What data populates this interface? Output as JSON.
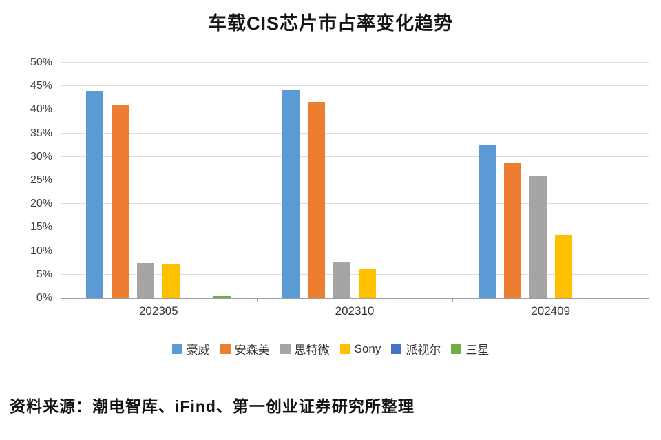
{
  "chart_data": {
    "type": "bar",
    "title": "车载CIS芯片市占率变化趋势",
    "categories": [
      "202305",
      "202310",
      "202409"
    ],
    "series": [
      {
        "name": "豪威",
        "color": "#5B9BD5",
        "values": [
          44.0,
          44.3,
          32.5
        ]
      },
      {
        "name": "安森美",
        "color": "#ED7D31",
        "values": [
          41.0,
          41.6,
          28.6
        ]
      },
      {
        "name": "思特微",
        "color": "#A5A5A5",
        "values": [
          7.5,
          7.7,
          25.9
        ]
      },
      {
        "name": "Sony",
        "color": "#FFC000",
        "values": [
          7.1,
          6.2,
          13.5
        ]
      },
      {
        "name": "派视尔",
        "color": "#4472C4",
        "values": [
          0,
          0,
          0
        ]
      },
      {
        "name": "三星",
        "color": "#70AD47",
        "values": [
          0.4,
          0,
          0
        ]
      }
    ],
    "ylim": [
      0,
      50
    ],
    "ytick_step": 5,
    "ytick_format": "percent",
    "grid": true,
    "legend_position": "bottom"
  },
  "source_note": "资料来源：潮电智库、iFind、第一创业证券研究所整理"
}
